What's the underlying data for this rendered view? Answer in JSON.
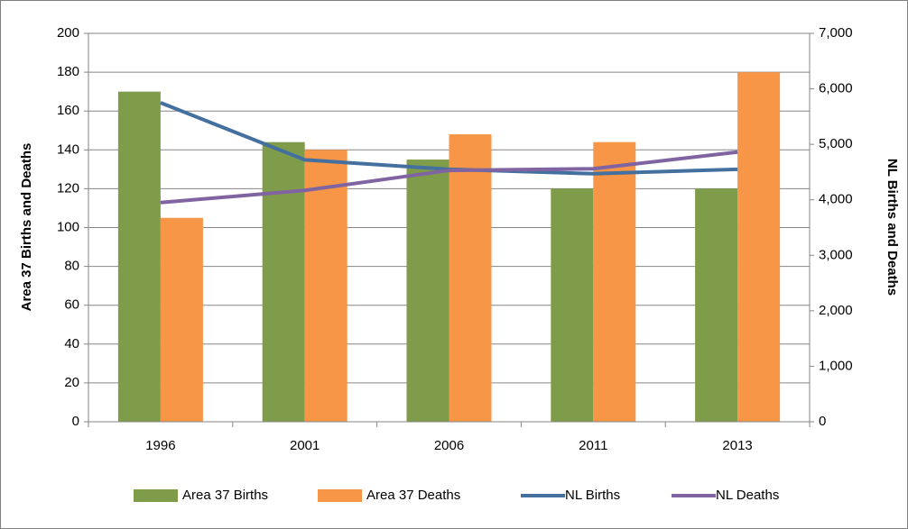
{
  "chart_data": {
    "type": "bar-line",
    "y_label": "Area 37 Births and Deaths",
    "y2_label": "NL Births and Deaths",
    "categories": [
      "1996",
      "2001",
      "2006",
      "2011",
      "2013"
    ],
    "series": [
      {
        "name": "Area 37 Births",
        "type": "bar",
        "color": "#7f9c4a",
        "values": [
          170,
          144,
          135,
          120,
          120
        ]
      },
      {
        "name": "Area 37 Deaths",
        "type": "bar",
        "color": "#f79646",
        "values": [
          105,
          140,
          148,
          144,
          180
        ]
      },
      {
        "name": "NL Births",
        "type": "line",
        "axis": "y2",
        "color": "#4470a0",
        "values": [
          5750,
          4720,
          4550,
          4470,
          4550
        ]
      },
      {
        "name": "NL Deaths",
        "type": "line",
        "axis": "y2",
        "color": "#8064a2",
        "values": [
          3950,
          4170,
          4530,
          4560,
          4860
        ]
      }
    ],
    "ylim": [
      0,
      200
    ],
    "yticks": [
      0,
      20,
      40,
      60,
      80,
      100,
      120,
      140,
      160,
      180,
      200
    ],
    "y2lim": [
      0,
      7000
    ],
    "y2ticks": [
      0,
      {
        "value": 1000,
        "label": "1,000"
      },
      {
        "value": 2000,
        "label": "2,000"
      },
      {
        "value": 3000,
        "label": "3,000"
      },
      {
        "value": 4000,
        "label": "4,000"
      },
      {
        "value": 5000,
        "label": "5,000"
      },
      {
        "value": 6000,
        "label": "6,000"
      },
      {
        "value": 7000,
        "label": "7,000"
      }
    ],
    "grid": true,
    "legend": "bottom"
  }
}
